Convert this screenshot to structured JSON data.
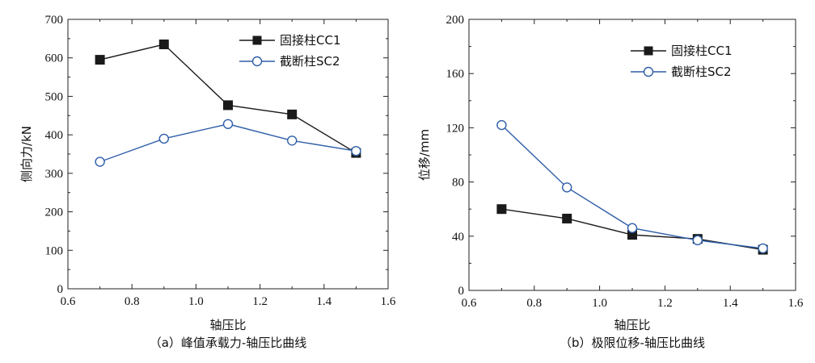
{
  "chart_data": [
    {
      "type": "line",
      "caption": "（a）峰值承载力-轴压比曲线",
      "xlabel": "轴压比",
      "ylabel": "侧向力/kN",
      "xlim": [
        0.6,
        1.6
      ],
      "ylim": [
        0,
        700
      ],
      "xticks": [
        0.6,
        0.8,
        1.0,
        1.2,
        1.4,
        1.6
      ],
      "yticks": [
        0,
        100,
        200,
        300,
        400,
        500,
        600,
        700
      ],
      "legend_position": "top-right",
      "grid": false,
      "x": [
        0.7,
        0.9,
        1.1,
        1.3,
        1.5
      ],
      "series": [
        {
          "name": "固接柱CC1",
          "values": [
            595,
            635,
            477,
            453,
            353
          ],
          "color": "#1a1a1a",
          "marker": "square-filled"
        },
        {
          "name": "截断柱SC2",
          "values": [
            330,
            390,
            428,
            385,
            358
          ],
          "color": "#2e5ea8",
          "marker": "circle-open"
        }
      ]
    },
    {
      "type": "line",
      "caption": "（b）极限位移-轴压比曲线",
      "xlabel": "轴压比",
      "ylabel": "位移/mm",
      "xlim": [
        0.6,
        1.6
      ],
      "ylim": [
        0,
        200
      ],
      "xticks": [
        0.6,
        0.8,
        1.0,
        1.2,
        1.4,
        1.6
      ],
      "yticks": [
        0,
        40,
        80,
        120,
        160,
        200
      ],
      "legend_position": "top-right",
      "grid": false,
      "x": [
        0.7,
        0.9,
        1.1,
        1.3,
        1.5
      ],
      "series": [
        {
          "name": "固接柱CC1",
          "values": [
            60,
            53,
            41,
            38,
            30
          ],
          "color": "#1a1a1a",
          "marker": "square-filled"
        },
        {
          "name": "截断柱SC2",
          "values": [
            122,
            76,
            46,
            37,
            31
          ],
          "color": "#2e5ea8",
          "marker": "circle-open"
        }
      ]
    }
  ]
}
